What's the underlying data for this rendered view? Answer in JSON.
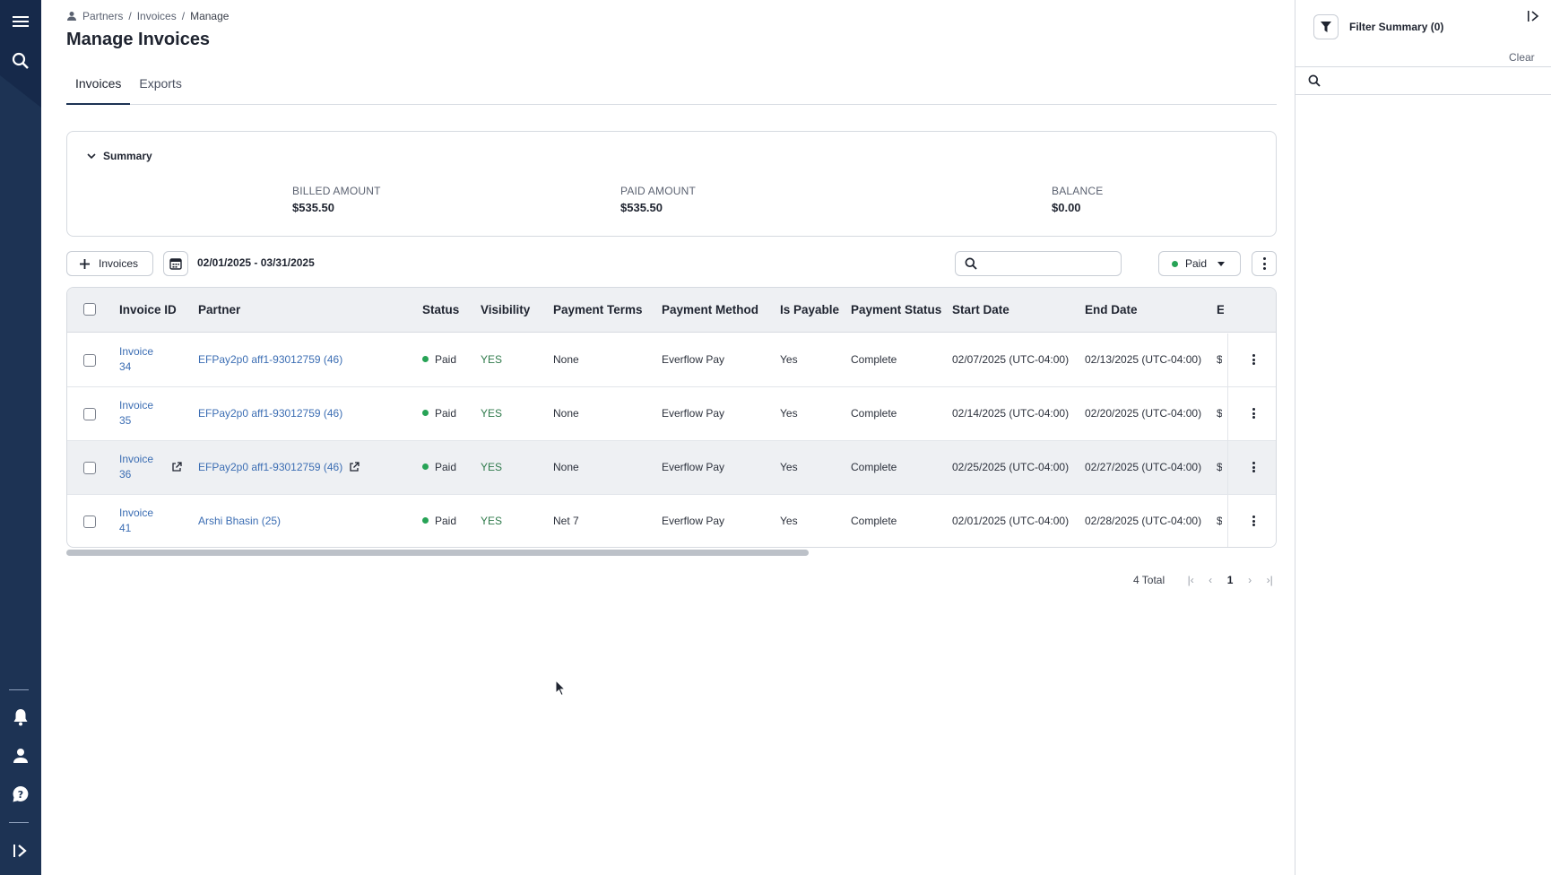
{
  "breadcrumb": {
    "items": [
      "Partners",
      "Invoices",
      "Manage"
    ],
    "sep": "/"
  },
  "page_title": "Manage Invoices",
  "tabs": [
    {
      "label": "Invoices",
      "active": true
    },
    {
      "label": "Exports",
      "active": false
    }
  ],
  "summary": {
    "toggle_label": "Summary",
    "billed": {
      "label": "BILLED AMOUNT",
      "value": "$535.50"
    },
    "paid": {
      "label": "PAID AMOUNT",
      "value": "$535.50"
    },
    "balance": {
      "label": "BALANCE",
      "value": "$0.00"
    }
  },
  "toolbar": {
    "add_label": "Invoices",
    "date_range": "02/01/2025 - 03/31/2025",
    "search_value": "",
    "status_filter": "Paid"
  },
  "table": {
    "headers": {
      "invoice_id": "Invoice ID",
      "partner": "Partner",
      "status": "Status",
      "visibility": "Visibility",
      "payment_terms": "Payment Terms",
      "payment_method": "Payment Method",
      "is_payable": "Is Payable",
      "payment_status": "Payment Status",
      "start_date": "Start Date",
      "end_date": "End Date",
      "truncated": "E"
    },
    "rows": [
      {
        "invoice_line1": "Invoice",
        "invoice_line2": "34",
        "partner": "EFPay2p0 aff1-93012759 (46)",
        "status": "Paid",
        "visibility": "YES",
        "payment_terms": "None",
        "payment_method": "Everflow Pay",
        "is_payable": "Yes",
        "payment_status": "Complete",
        "start_date": "02/07/2025 (UTC-04:00)",
        "end_date": "02/13/2025 (UTC-04:00)",
        "truncated": "$"
      },
      {
        "invoice_line1": "Invoice",
        "invoice_line2": "35",
        "partner": "EFPay2p0 aff1-93012759 (46)",
        "status": "Paid",
        "visibility": "YES",
        "payment_terms": "None",
        "payment_method": "Everflow Pay",
        "is_payable": "Yes",
        "payment_status": "Complete",
        "start_date": "02/14/2025 (UTC-04:00)",
        "end_date": "02/20/2025 (UTC-04:00)",
        "truncated": "$"
      },
      {
        "invoice_line1": "Invoice",
        "invoice_line2": "36",
        "partner": "EFPay2p0 aff1-93012759 (46)",
        "status": "Paid",
        "visibility": "YES",
        "payment_terms": "None",
        "payment_method": "Everflow Pay",
        "is_payable": "Yes",
        "payment_status": "Complete",
        "start_date": "02/25/2025 (UTC-04:00)",
        "end_date": "02/27/2025 (UTC-04:00)",
        "truncated": "$"
      },
      {
        "invoice_line1": "Invoice",
        "invoice_line2": "41",
        "partner": "Arshi Bhasin (25)",
        "status": "Paid",
        "visibility": "YES",
        "payment_terms": "Net 7",
        "payment_method": "Everflow Pay",
        "is_payable": "Yes",
        "payment_status": "Complete",
        "start_date": "02/01/2025 (UTC-04:00)",
        "end_date": "02/28/2025 (UTC-04:00)",
        "truncated": "$"
      }
    ]
  },
  "pagination": {
    "total": "4 Total",
    "current": "1"
  },
  "filter_panel": {
    "title": "Filter Summary (0)",
    "clear": "Clear",
    "search_value": ""
  },
  "colors": {
    "nav": "#1d3354",
    "link": "#3b6db3",
    "paid_dot": "#27a356"
  }
}
